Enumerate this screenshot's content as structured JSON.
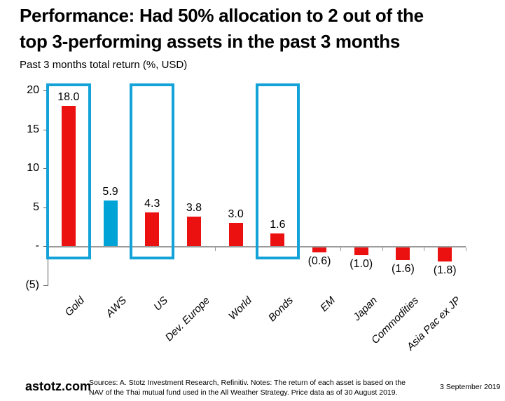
{
  "heading": {
    "line1": "Performance: Had 50% allocation to 2 out of the",
    "line2": "top 3-performing assets in the past 3 months"
  },
  "chart_data": {
    "type": "bar",
    "title": "Performance: Had 50% allocation to 2 out of the top 3-performing assets in the past 3 months",
    "ylabel": "Past 3 months total return (%, USD)",
    "xlabel": "",
    "categories": [
      "Gold",
      "AWS",
      "US",
      "Dev. Europe",
      "World",
      "Bonds",
      "EM",
      "Japan",
      "Commodities",
      "Asia Pac ex JP"
    ],
    "values": [
      18.0,
      5.9,
      4.3,
      3.8,
      3.0,
      1.6,
      -0.6,
      -1.0,
      -1.6,
      -1.8
    ],
    "value_labels": [
      "18.0",
      "5.9",
      "4.3",
      "3.8",
      "3.0",
      "1.6",
      "(0.6)",
      "(1.0)",
      "(1.6)",
      "(1.8)"
    ],
    "bar_color_keys": [
      "red",
      "blue",
      "red",
      "red",
      "red",
      "red",
      "red",
      "red",
      "red",
      "red"
    ],
    "highlighted_categories": [
      "Gold",
      "US",
      "Bonds"
    ],
    "highlight_indices": [
      0,
      2,
      5
    ],
    "y_ticks": [
      {
        "label": "20",
        "value": 20
      },
      {
        "label": "15",
        "value": 15
      },
      {
        "label": "10",
        "value": 10
      },
      {
        "label": "5",
        "value": 5
      },
      {
        "label": "-",
        "value": 0
      },
      {
        "label": "(5)",
        "value": -5
      }
    ],
    "ylim": [
      -5,
      20
    ],
    "grid": false,
    "legend": false
  },
  "colors": {
    "red": "#EC1111",
    "blue": "#00A3D6",
    "highlight_box": "#14A3D9",
    "axis_line": "#595959",
    "zero_line": "#9B9B9B"
  },
  "footer": {
    "brand": "astotz.com",
    "sources_line1": "Sources: A. Stotz Investment Research, Refinitiv. Notes: The return of each asset is based on the NAV of the Thai",
    "sources_line2": "mutual fund used in the All Weather Strategy. Price data as of 30 August 2019.",
    "date": "3 September 2019"
  }
}
